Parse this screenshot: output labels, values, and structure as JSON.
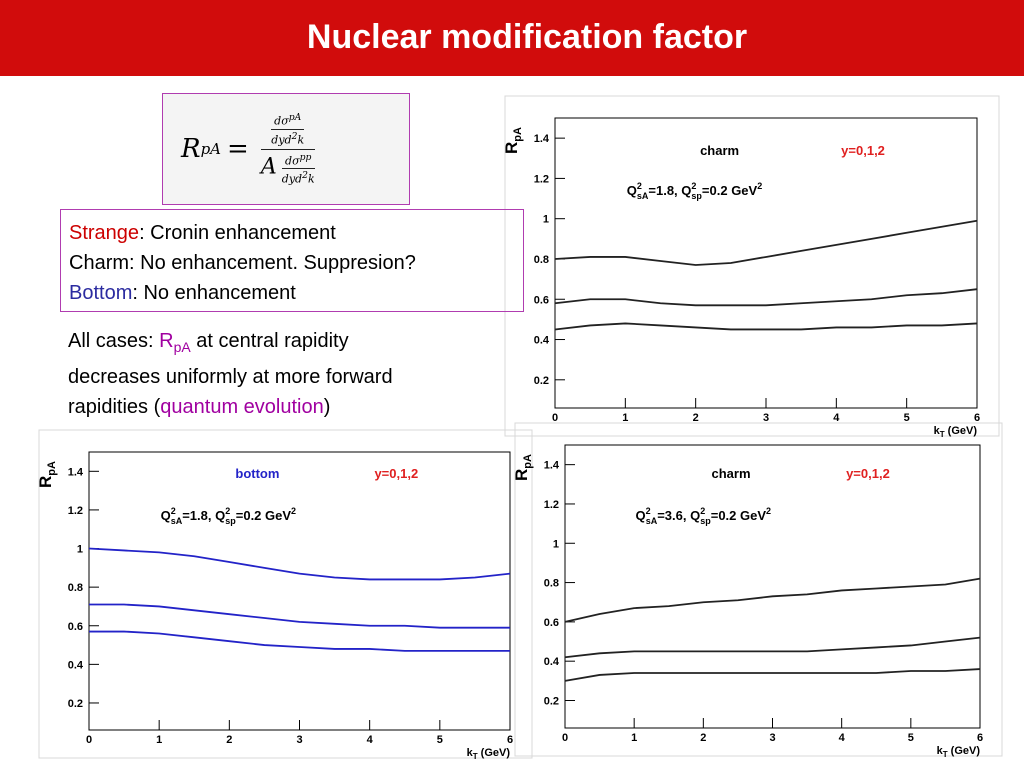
{
  "title": "Nuclear modification factor",
  "formula": {
    "lhs": "R",
    "lhs_sub": "pA",
    "eq": "=",
    "num_num": "dσ",
    "num_num_sup": "pA",
    "num_den": "dyd",
    "num_den_sup": "2",
    "num_den_end": "k",
    "factor": "A",
    "den_num": "dσ",
    "den_num_sup": "pp",
    "den_den": "dyd",
    "den_den_sup": "2",
    "den_den_end": "k"
  },
  "text_box": {
    "lines": [
      [
        {
          "t": "Strange",
          "color": "#cc0000"
        },
        {
          "t": ": Cronin enhancement"
        }
      ],
      [
        {
          "t": "Charm: No enhancement. Suppresion?"
        }
      ],
      [
        {
          "t": "Bottom",
          "color": "#2b2ba0"
        },
        {
          "t": ": No enhancement"
        }
      ]
    ]
  },
  "note": {
    "lines": [
      [
        {
          "t": "All cases: "
        },
        {
          "t": "R",
          "color": "#a000a0"
        },
        {
          "sub": "pA",
          "color": "#a000a0"
        },
        {
          "t": " at central rapidity"
        }
      ],
      [
        {
          "t": "decreases uniformly at more forward"
        }
      ],
      [
        {
          "t": "rapidities ("
        },
        {
          "t": "quantum evolution",
          "color": "#a000a0"
        },
        {
          "t": ")"
        }
      ]
    ]
  },
  "chart_data": [
    {
      "type": "line",
      "label": "charm",
      "label_color": "#000000",
      "rapidity_label": "y=0,1,2",
      "rapidity_color": "#e02020",
      "params": [
        {
          "t": "Q"
        },
        {
          "sup": "2"
        },
        {
          "sub": "sA"
        },
        {
          "t": "=1.8, Q"
        },
        {
          "sup": "2"
        },
        {
          "sub": "sp"
        },
        {
          "t": "=0.2 GeV"
        },
        {
          "sup": "2"
        }
      ],
      "ylabel": "R",
      "ylabel_sub": "pA",
      "xlabel": "k",
      "xlabel_sub": "T",
      "xlabel_end": " (GeV)",
      "x": [
        0,
        0.5,
        1,
        1.5,
        2,
        2.5,
        3,
        3.5,
        4,
        4.5,
        5,
        5.5,
        6
      ],
      "series": [
        {
          "color": "#222222",
          "values": [
            0.8,
            0.81,
            0.81,
            0.79,
            0.77,
            0.78,
            0.81,
            0.84,
            0.87,
            0.9,
            0.93,
            0.96,
            0.99
          ]
        },
        {
          "color": "#222222",
          "values": [
            0.58,
            0.6,
            0.6,
            0.58,
            0.57,
            0.57,
            0.57,
            0.58,
            0.59,
            0.6,
            0.62,
            0.63,
            0.65
          ]
        },
        {
          "color": "#222222",
          "values": [
            0.45,
            0.47,
            0.48,
            0.47,
            0.46,
            0.45,
            0.45,
            0.45,
            0.46,
            0.46,
            0.47,
            0.47,
            0.48
          ]
        }
      ],
      "xlim": [
        0,
        6
      ],
      "ylim": [
        0.06,
        1.5
      ],
      "xticks": [
        0,
        1,
        2,
        3,
        4,
        5,
        6
      ],
      "yticks": [
        0.2,
        0.4,
        0.6,
        0.8,
        1,
        1.2,
        1.4
      ]
    },
    {
      "type": "line",
      "label": "bottom",
      "label_color": "#2323c8",
      "rapidity_label": "y=0,1,2",
      "rapidity_color": "#e02020",
      "params": [
        {
          "t": "Q"
        },
        {
          "sup": "2"
        },
        {
          "sub": "sA"
        },
        {
          "t": "=1.8, Q"
        },
        {
          "sup": "2"
        },
        {
          "sub": "sp"
        },
        {
          "t": "=0.2 GeV"
        },
        {
          "sup": "2"
        }
      ],
      "ylabel": "R",
      "ylabel_sub": "pA",
      "xlabel": "k",
      "xlabel_sub": "T",
      "xlabel_end": " (GeV)",
      "x": [
        0,
        0.5,
        1,
        1.5,
        2,
        2.5,
        3,
        3.5,
        4,
        4.5,
        5,
        5.5,
        6
      ],
      "series": [
        {
          "color": "#2323c8",
          "values": [
            1.0,
            0.99,
            0.98,
            0.96,
            0.93,
            0.9,
            0.87,
            0.85,
            0.84,
            0.84,
            0.84,
            0.85,
            0.87
          ]
        },
        {
          "color": "#2323c8",
          "values": [
            0.71,
            0.71,
            0.7,
            0.68,
            0.66,
            0.64,
            0.62,
            0.61,
            0.6,
            0.6,
            0.59,
            0.59,
            0.59
          ]
        },
        {
          "color": "#2323c8",
          "values": [
            0.57,
            0.57,
            0.56,
            0.54,
            0.52,
            0.5,
            0.49,
            0.48,
            0.48,
            0.47,
            0.47,
            0.47,
            0.47
          ]
        }
      ],
      "xlim": [
        0,
        6
      ],
      "ylim": [
        0.06,
        1.5
      ],
      "xticks": [
        0,
        1,
        2,
        3,
        4,
        5,
        6
      ],
      "yticks": [
        0.2,
        0.4,
        0.6,
        0.8,
        1,
        1.2,
        1.4
      ]
    },
    {
      "type": "line",
      "label": "charm",
      "label_color": "#000000",
      "rapidity_label": "y=0,1,2",
      "rapidity_color": "#e02020",
      "params": [
        {
          "t": "Q"
        },
        {
          "sup": "2"
        },
        {
          "sub": "sA"
        },
        {
          "t": "=3.6, Q"
        },
        {
          "sup": "2"
        },
        {
          "sub": "sp"
        },
        {
          "t": "=0.2 GeV"
        },
        {
          "sup": "2"
        }
      ],
      "ylabel": "R",
      "ylabel_sub": "pA",
      "xlabel": "k",
      "xlabel_sub": "T",
      "xlabel_end": " (GeV)",
      "x": [
        0,
        0.5,
        1,
        1.5,
        2,
        2.5,
        3,
        3.5,
        4,
        4.5,
        5,
        5.5,
        6
      ],
      "series": [
        {
          "color": "#222222",
          "values": [
            0.6,
            0.64,
            0.67,
            0.68,
            0.7,
            0.71,
            0.73,
            0.74,
            0.76,
            0.77,
            0.78,
            0.79,
            0.82
          ]
        },
        {
          "color": "#222222",
          "values": [
            0.42,
            0.44,
            0.45,
            0.45,
            0.45,
            0.45,
            0.45,
            0.45,
            0.46,
            0.47,
            0.48,
            0.5,
            0.52
          ]
        },
        {
          "color": "#222222",
          "values": [
            0.3,
            0.33,
            0.34,
            0.34,
            0.34,
            0.34,
            0.34,
            0.34,
            0.34,
            0.34,
            0.35,
            0.35,
            0.36
          ]
        }
      ],
      "xlim": [
        0,
        6
      ],
      "ylim": [
        0.06,
        1.5
      ],
      "xticks": [
        0,
        1,
        2,
        3,
        4,
        5,
        6
      ],
      "yticks": [
        0.2,
        0.4,
        0.6,
        0.8,
        1,
        1.2,
        1.4
      ]
    }
  ]
}
